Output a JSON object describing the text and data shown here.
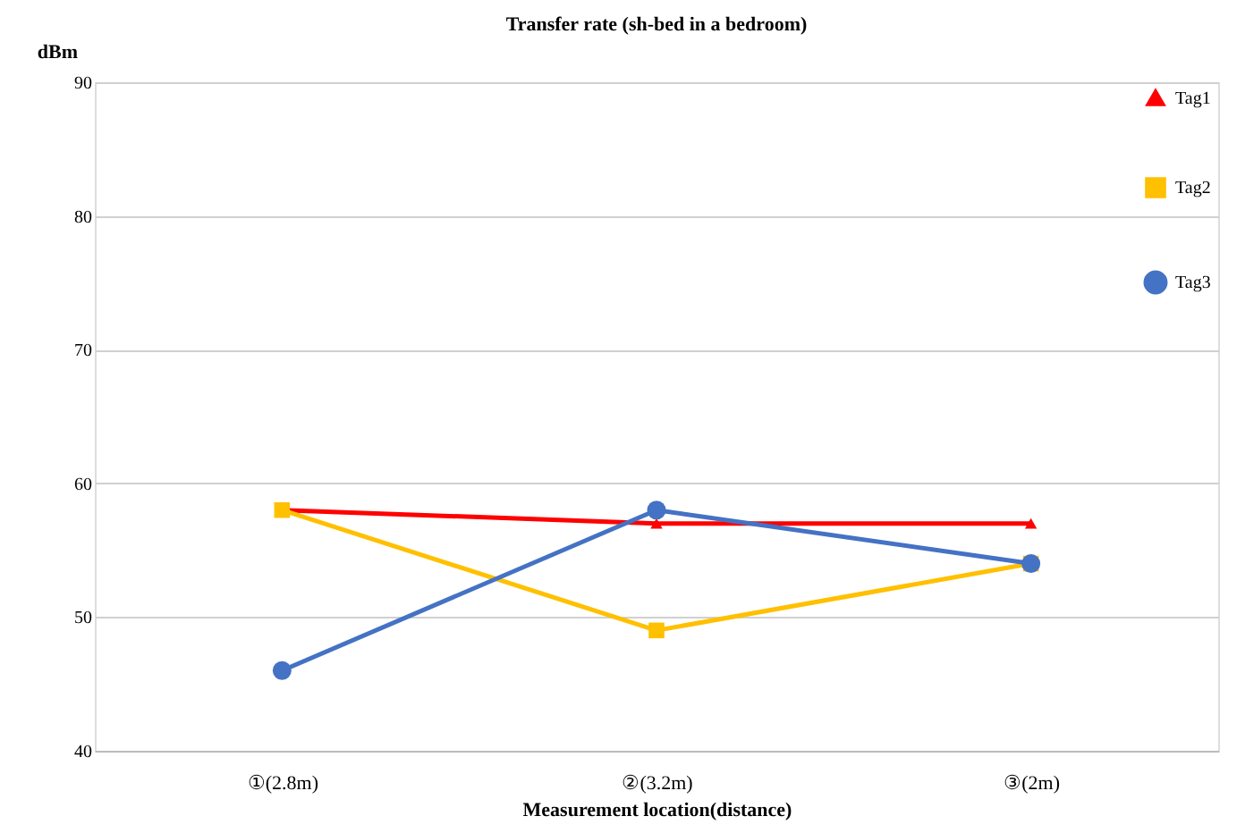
{
  "chart_data": {
    "type": "line",
    "title": "Transfer rate (sh-bed in a bedroom)",
    "xlabel": "Measurement location(distance)",
    "ylabel": "dBm",
    "categories": [
      "①(2.8m)",
      "②(3.2m)",
      "③(2m)"
    ],
    "series": [
      {
        "name": "Tag1",
        "color": "#ff0000",
        "marker": "triangle",
        "values": [
          58,
          57,
          57
        ]
      },
      {
        "name": "Tag2",
        "color": "#ffc000",
        "marker": "square",
        "values": [
          58,
          49,
          54
        ]
      },
      {
        "name": "Tag3",
        "color": "#4472c4",
        "marker": "circle",
        "values": [
          46,
          58,
          54
        ]
      }
    ],
    "ylim": [
      40,
      90
    ],
    "yticks": [
      40,
      50,
      60,
      70,
      80,
      90
    ],
    "grid": "y",
    "legend": "top right"
  }
}
